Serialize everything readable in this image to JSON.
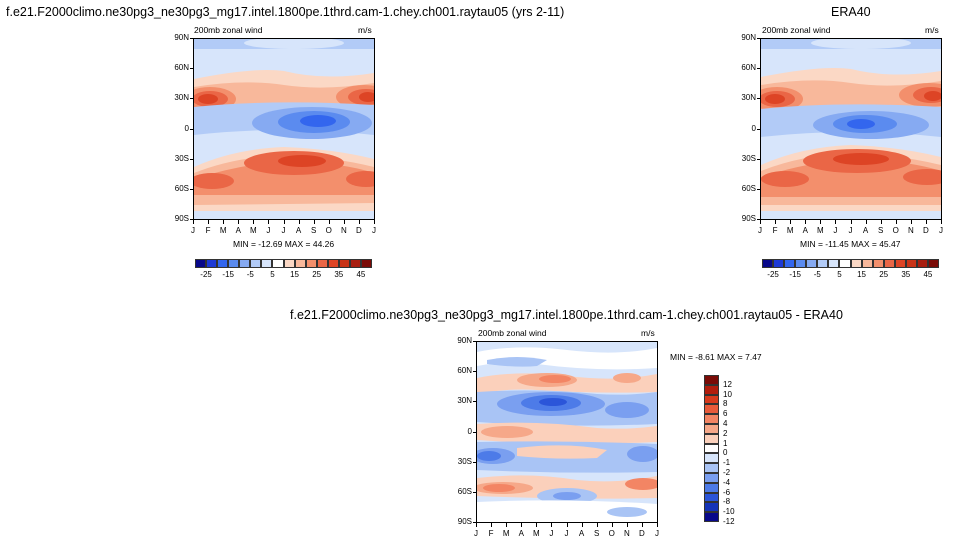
{
  "chart_data": [
    {
      "type": "heatmap",
      "title": "f.e21.F2000climo.ne30pg3_ne30pg3_mg17.intel.1800pe.1thrd.cam-1.chey.ch001.raytau05 (yrs 2-11)",
      "left_label": "200mb zonal wind",
      "right_label": "m/s",
      "x_ticks": [
        "J",
        "F",
        "M",
        "A",
        "M",
        "J",
        "J",
        "A",
        "S",
        "O",
        "N",
        "D",
        "J"
      ],
      "y_ticks": [
        "90N",
        "60N",
        "30N",
        "0",
        "30S",
        "60S",
        "90S"
      ],
      "summary": "MIN = -12.69 MAX =  44.26",
      "colorbar_labels": [
        "-25",
        "-15",
        "-5",
        "5",
        "15",
        "25",
        "35",
        "45"
      ]
    },
    {
      "type": "heatmap",
      "title": "ERA40",
      "left_label": "200mb zonal wind",
      "right_label": "m/s",
      "x_ticks": [
        "J",
        "F",
        "M",
        "A",
        "M",
        "J",
        "J",
        "A",
        "S",
        "O",
        "N",
        "D",
        "J"
      ],
      "y_ticks": [
        "90N",
        "60N",
        "30N",
        "0",
        "30S",
        "60S",
        "90S"
      ],
      "summary": "MIN = -11.45 MAX =  45.47",
      "colorbar_labels": [
        "-25",
        "-15",
        "-5",
        "5",
        "15",
        "25",
        "35",
        "45"
      ]
    },
    {
      "type": "heatmap",
      "title": "f.e21.F2000climo.ne30pg3_ne30pg3_mg17.intel.1800pe.1thrd.cam-1.chey.ch001.raytau05 - ERA40",
      "left_label": "200mb zonal wind",
      "right_label": "m/s",
      "x_ticks": [
        "J",
        "F",
        "M",
        "A",
        "M",
        "J",
        "J",
        "A",
        "S",
        "O",
        "N",
        "D",
        "J"
      ],
      "y_ticks": [
        "90N",
        "60N",
        "30N",
        "0",
        "30S",
        "60S",
        "90S"
      ],
      "summary": "MIN =  -8.61 MAX =   7.47",
      "colorbar_labels": [
        "12",
        "10",
        "8",
        "6",
        "4",
        "2",
        "1",
        "0",
        "-1",
        "-2",
        "-4",
        "-6",
        "-8",
        "-10",
        "-12"
      ]
    }
  ],
  "colors": {
    "full": [
      "#08088a",
      "#1e3ad6",
      "#3366ee",
      "#5b8bef",
      "#86aaf2",
      "#b2cbf7",
      "#d7e5fb",
      "#ffffff",
      "#fbd8c5",
      "#f8b89b",
      "#f38f6c",
      "#ea6646",
      "#dd4425",
      "#c93317",
      "#a81e10",
      "#7a0b07"
    ],
    "diff": [
      "#7a0b07",
      "#b11d0d",
      "#d63a1d",
      "#e85b3b",
      "#f38564",
      "#f6a889",
      "#fbd0bb",
      "#ffffff",
      "#d7e5fb",
      "#a9c4f5",
      "#7a9ff0",
      "#4d7be8",
      "#2b55d9",
      "#1433b8",
      "#08088a"
    ]
  }
}
